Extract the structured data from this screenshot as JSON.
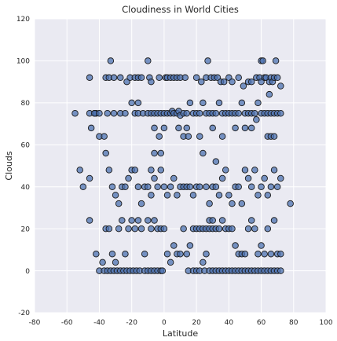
{
  "chart_data": {
    "type": "scatter",
    "title": "Cloudiness in World Cities",
    "xlabel": "Latitude",
    "ylabel": "Clouds",
    "xlim": [
      -80,
      100
    ],
    "ylim": [
      -20,
      120
    ],
    "xticks": [
      "-80",
      "-60",
      "-40",
      "-20",
      "0",
      "20",
      "40",
      "60",
      "80",
      "100"
    ],
    "yticks": [
      "120",
      "100",
      "80",
      "60",
      "40",
      "20",
      "0",
      "-20"
    ],
    "grid": true,
    "background_color": "#eaeaf2",
    "marker_color": "#4c72b0",
    "series": [
      {
        "points": [
          [
            -55,
            75
          ],
          [
            -52,
            48
          ],
          [
            -50,
            40
          ],
          [
            -46,
            92
          ],
          [
            -45,
            68
          ],
          [
            -43,
            75
          ],
          [
            -42,
            75
          ],
          [
            -40,
            64
          ],
          [
            -37,
            64
          ],
          [
            -36,
            92
          ],
          [
            -33,
            100
          ],
          [
            -34,
            92
          ],
          [
            -31,
            92
          ],
          [
            -27,
            92
          ],
          [
            -23,
            90
          ],
          [
            -21,
            92
          ],
          [
            -18,
            92
          ],
          [
            -16,
            92
          ],
          [
            -14,
            92
          ],
          [
            -10,
            100
          ],
          [
            -9,
            92
          ],
          [
            -8,
            90
          ],
          [
            -3,
            92
          ],
          [
            1,
            92
          ],
          [
            2,
            92
          ],
          [
            4,
            92
          ],
          [
            6,
            92
          ],
          [
            8,
            92
          ],
          [
            10,
            92
          ],
          [
            13,
            92
          ],
          [
            20,
            92
          ],
          [
            23,
            90
          ],
          [
            26,
            92
          ],
          [
            29,
            92
          ],
          [
            31,
            92
          ],
          [
            33,
            92
          ],
          [
            35,
            90
          ],
          [
            37,
            90
          ],
          [
            40,
            92
          ],
          [
            42,
            90
          ],
          [
            46,
            92
          ],
          [
            49,
            88
          ],
          [
            52,
            90
          ],
          [
            54,
            90
          ],
          [
            57,
            92
          ],
          [
            59,
            92
          ],
          [
            60,
            90
          ],
          [
            62,
            92
          ],
          [
            63,
            92
          ],
          [
            65,
            90
          ],
          [
            66,
            92
          ],
          [
            67,
            90
          ],
          [
            68,
            92
          ],
          [
            70,
            92
          ],
          [
            72,
            88
          ],
          [
            27,
            100
          ],
          [
            60,
            100
          ],
          [
            61,
            100
          ],
          [
            69,
            100
          ],
          [
            -46,
            75
          ],
          [
            -43,
            75
          ],
          [
            -40,
            75
          ],
          [
            -35,
            75
          ],
          [
            -31,
            75
          ],
          [
            -27,
            75
          ],
          [
            -24,
            75
          ],
          [
            -20,
            80
          ],
          [
            -18,
            75
          ],
          [
            -16,
            75
          ],
          [
            -13,
            75
          ],
          [
            -10,
            75
          ],
          [
            -8,
            75
          ],
          [
            -6,
            75
          ],
          [
            -4,
            75
          ],
          [
            -2,
            75
          ],
          [
            0,
            75
          ],
          [
            2,
            75
          ],
          [
            4,
            75
          ],
          [
            5,
            76
          ],
          [
            6,
            75
          ],
          [
            8,
            75
          ],
          [
            9,
            76
          ],
          [
            10,
            74
          ],
          [
            12,
            75
          ],
          [
            14,
            75
          ],
          [
            16,
            80
          ],
          [
            18,
            75
          ],
          [
            20,
            75
          ],
          [
            22,
            75
          ],
          [
            24,
            80
          ],
          [
            26,
            75
          ],
          [
            28,
            75
          ],
          [
            30,
            75
          ],
          [
            32,
            75
          ],
          [
            34,
            80
          ],
          [
            36,
            75
          ],
          [
            38,
            75
          ],
          [
            40,
            75
          ],
          [
            42,
            75
          ],
          [
            44,
            75
          ],
          [
            46,
            75
          ],
          [
            48,
            80
          ],
          [
            50,
            75
          ],
          [
            52,
            75
          ],
          [
            54,
            75
          ],
          [
            56,
            75
          ],
          [
            58,
            80
          ],
          [
            60,
            75
          ],
          [
            62,
            75
          ],
          [
            64,
            75
          ],
          [
            66,
            75
          ],
          [
            68,
            75
          ],
          [
            70,
            75
          ],
          [
            72,
            75
          ],
          [
            -16,
            80
          ],
          [
            65,
            84
          ],
          [
            57,
            72
          ],
          [
            64,
            64
          ],
          [
            66,
            64
          ],
          [
            68,
            64
          ],
          [
            54,
            68
          ],
          [
            50,
            68
          ],
          [
            44,
            68
          ],
          [
            -8,
            48
          ],
          [
            -6,
            68
          ],
          [
            0,
            68
          ],
          [
            -3,
            64
          ],
          [
            9,
            68
          ],
          [
            14,
            68
          ],
          [
            12,
            64
          ],
          [
            15,
            64
          ],
          [
            22,
            64
          ],
          [
            30,
            68
          ],
          [
            36,
            64
          ],
          [
            -46,
            24
          ],
          [
            -42,
            8
          ],
          [
            -40,
            0
          ],
          [
            -37,
            0
          ],
          [
            -35,
            0
          ],
          [
            -33,
            0
          ],
          [
            -31,
            0
          ],
          [
            -29,
            0
          ],
          [
            -27,
            0
          ],
          [
            -25,
            0
          ],
          [
            -23,
            0
          ],
          [
            -21,
            0
          ],
          [
            -19,
            0
          ],
          [
            -17,
            0
          ],
          [
            -15,
            0
          ],
          [
            -12,
            0
          ],
          [
            -10,
            0
          ],
          [
            -8,
            0
          ],
          [
            -6,
            0
          ],
          [
            -4,
            0
          ],
          [
            -2,
            0
          ],
          [
            -1,
            0
          ],
          [
            15,
            0
          ],
          [
            18,
            0
          ],
          [
            20,
            0
          ],
          [
            22,
            0
          ],
          [
            25,
            0
          ],
          [
            28,
            0
          ],
          [
            30,
            0
          ],
          [
            32,
            0
          ],
          [
            34,
            0
          ],
          [
            36,
            0
          ],
          [
            38,
            0
          ],
          [
            40,
            0
          ],
          [
            42,
            0
          ],
          [
            44,
            0
          ],
          [
            46,
            0
          ],
          [
            48,
            0
          ],
          [
            50,
            0
          ],
          [
            52,
            0
          ],
          [
            54,
            0
          ],
          [
            56,
            0
          ],
          [
            58,
            0
          ],
          [
            60,
            0
          ],
          [
            62,
            0
          ],
          [
            64,
            0
          ],
          [
            66,
            0
          ],
          [
            68,
            0
          ],
          [
            70,
            0
          ],
          [
            72,
            0
          ],
          [
            -38,
            4
          ],
          [
            -36,
            20
          ],
          [
            -34,
            20
          ],
          [
            -32,
            8
          ],
          [
            -30,
            4
          ],
          [
            -28,
            20
          ],
          [
            -26,
            24
          ],
          [
            -24,
            8
          ],
          [
            -22,
            20
          ],
          [
            -20,
            24
          ],
          [
            -18,
            20
          ],
          [
            -16,
            24
          ],
          [
            -14,
            20
          ],
          [
            -12,
            8
          ],
          [
            -10,
            24
          ],
          [
            -8,
            20
          ],
          [
            -6,
            24
          ],
          [
            -4,
            20
          ],
          [
            -2,
            20
          ],
          [
            0,
            20
          ],
          [
            2,
            8
          ],
          [
            4,
            4
          ],
          [
            6,
            12
          ],
          [
            8,
            8
          ],
          [
            10,
            8
          ],
          [
            12,
            20
          ],
          [
            14,
            8
          ],
          [
            16,
            12
          ],
          [
            18,
            20
          ],
          [
            20,
            20
          ],
          [
            22,
            20
          ],
          [
            24,
            20
          ],
          [
            26,
            20
          ],
          [
            28,
            20
          ],
          [
            30,
            20
          ],
          [
            32,
            20
          ],
          [
            34,
            20
          ],
          [
            36,
            24
          ],
          [
            38,
            20
          ],
          [
            40,
            20
          ],
          [
            42,
            20
          ],
          [
            44,
            12
          ],
          [
            46,
            8
          ],
          [
            48,
            8
          ],
          [
            50,
            8
          ],
          [
            52,
            20
          ],
          [
            54,
            24
          ],
          [
            56,
            20
          ],
          [
            58,
            8
          ],
          [
            60,
            12
          ],
          [
            62,
            8
          ],
          [
            64,
            20
          ],
          [
            66,
            8
          ],
          [
            68,
            24
          ],
          [
            70,
            8
          ],
          [
            72,
            8
          ],
          [
            28,
            24
          ],
          [
            30,
            24
          ],
          [
            26,
            8
          ],
          [
            24,
            4
          ],
          [
            78,
            32
          ],
          [
            -36,
            56
          ],
          [
            -34,
            48
          ],
          [
            -32,
            40
          ],
          [
            -30,
            36
          ],
          [
            -28,
            32
          ],
          [
            -26,
            40
          ],
          [
            -24,
            40
          ],
          [
            -22,
            44
          ],
          [
            -20,
            48
          ],
          [
            -18,
            48
          ],
          [
            -16,
            40
          ],
          [
            -14,
            32
          ],
          [
            -12,
            40
          ],
          [
            -10,
            40
          ],
          [
            -8,
            36
          ],
          [
            -6,
            44
          ],
          [
            -4,
            40
          ],
          [
            -2,
            48
          ],
          [
            0,
            40
          ],
          [
            2,
            36
          ],
          [
            4,
            40
          ],
          [
            6,
            44
          ],
          [
            8,
            36
          ],
          [
            10,
            40
          ],
          [
            12,
            40
          ],
          [
            14,
            40
          ],
          [
            16,
            40
          ],
          [
            18,
            36
          ],
          [
            20,
            40
          ],
          [
            22,
            40
          ],
          [
            24,
            56
          ],
          [
            26,
            40
          ],
          [
            28,
            32
          ],
          [
            30,
            40
          ],
          [
            32,
            40
          ],
          [
            34,
            36
          ],
          [
            36,
            44
          ],
          [
            38,
            48
          ],
          [
            40,
            36
          ],
          [
            42,
            32
          ],
          [
            44,
            40
          ],
          [
            46,
            40
          ],
          [
            48,
            32
          ],
          [
            50,
            48
          ],
          [
            52,
            44
          ],
          [
            54,
            40
          ],
          [
            56,
            48
          ],
          [
            58,
            36
          ],
          [
            60,
            40
          ],
          [
            62,
            44
          ],
          [
            64,
            36
          ],
          [
            66,
            40
          ],
          [
            68,
            48
          ],
          [
            70,
            40
          ],
          [
            72,
            44
          ],
          [
            -6,
            56
          ],
          [
            32,
            52
          ],
          [
            -2,
            56
          ],
          [
            -46,
            44
          ]
        ]
      }
    ]
  }
}
